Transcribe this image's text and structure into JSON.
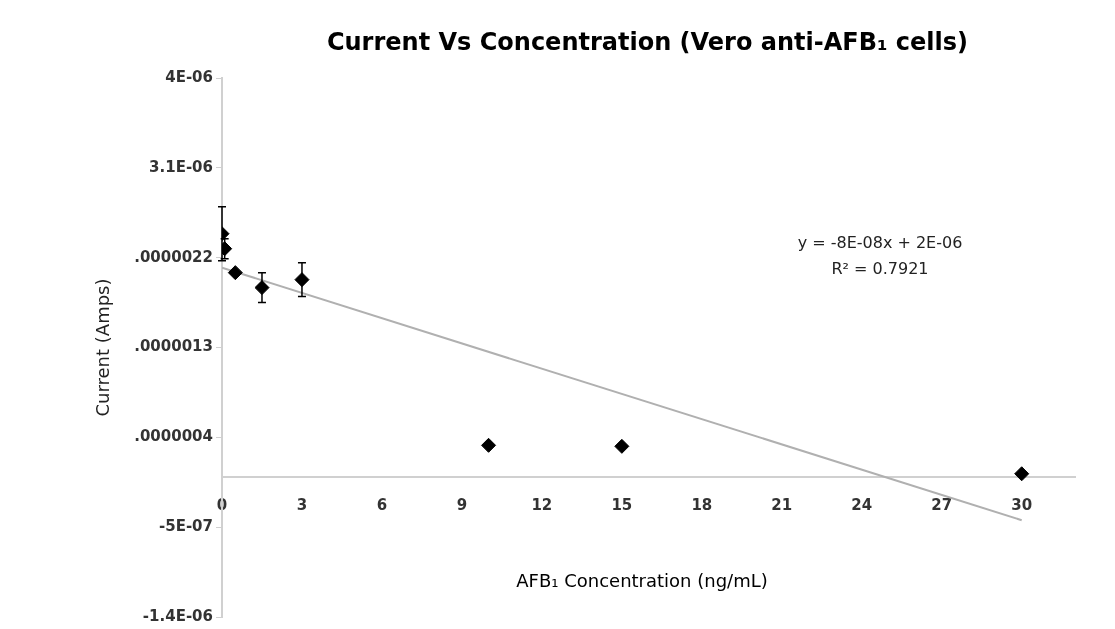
{
  "chart_data": {
    "type": "scatter",
    "title": "Current  Vs Concentration (Vero anti-AFB₁ cells)",
    "xlabel": "AFB₁ Concentration (ng/mL)",
    "ylabel": "Current (Amps)",
    "series": [
      {
        "color": "#000000",
        "marker": "diamond",
        "x": [
          0,
          0.1,
          0.5,
          1.5,
          3,
          10,
          15,
          30
        ],
        "values": [
          2.44e-06,
          2.29e-06,
          2.05e-06,
          1.9e-06,
          1.98e-06,
          3.2e-07,
          3.1e-07,
          3.5e-08
        ],
        "errors": [
          2.7e-07,
          1e-07,
          null,
          1.5e-07,
          1.7e-07,
          null,
          null,
          null
        ]
      },
      {
        "type": "line",
        "color": "#b0b0b0",
        "marker": "none",
        "x": [
          0,
          30
        ],
        "values": [
          2.1e-06,
          -4.3e-07
        ]
      }
    ],
    "xlim": [
      0,
      32
    ],
    "xticks": [
      0,
      3,
      6,
      9,
      12,
      15,
      18,
      21,
      24,
      27,
      30
    ],
    "ylim": [
      -1.4e-06,
      4e-06
    ],
    "yticks": [
      {
        "value": 4e-06,
        "label": "4E-06"
      },
      {
        "value": 3.1e-06,
        "label": "3.1E-06"
      },
      {
        "value": 2.2e-06,
        "label": ".0000022"
      },
      {
        "value": 1.3e-06,
        "label": ".0000013"
      },
      {
        "value": 4e-07,
        "label": ".0000004"
      },
      {
        "value": -5e-07,
        "label": "-5E-07"
      },
      {
        "value": -1.4e-06,
        "label": "-1.4E-06"
      }
    ],
    "annotations": [
      "y = -8E-08x + 2E-06",
      "R² = 0.7921"
    ],
    "grid": false,
    "legend": false
  }
}
